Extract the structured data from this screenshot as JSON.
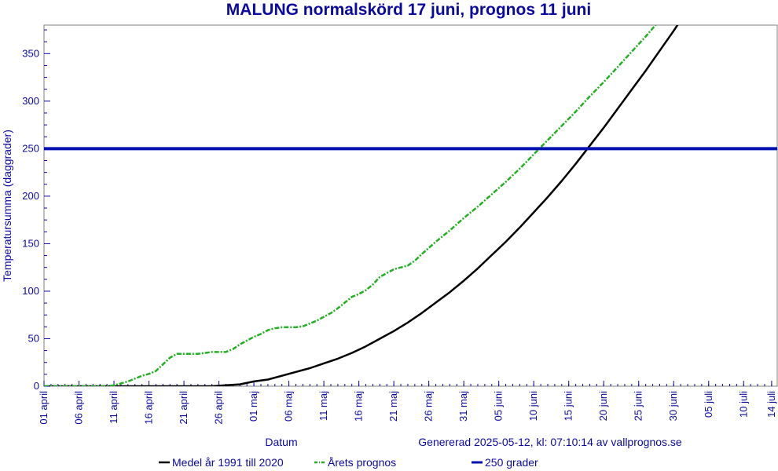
{
  "chart_data": {
    "type": "line",
    "title": "MALUNG normalskörd 17 juni, prognos 11 juni",
    "xlabel": "Datum",
    "ylabel": "Temperatursumma (daggrader)",
    "generated_note": "Genererad 2025-05-12, kl: 07:10:14 av vallprognos.se",
    "x_start_date": "2025-04-01",
    "ylim": [
      0,
      380
    ],
    "y_ticks": [
      0,
      50,
      100,
      150,
      200,
      250,
      300,
      350
    ],
    "x_ticks": [
      {
        "label": "01 april",
        "day": 0
      },
      {
        "label": "06 april",
        "day": 5
      },
      {
        "label": "11 april",
        "day": 10
      },
      {
        "label": "16 april",
        "day": 15
      },
      {
        "label": "21 april",
        "day": 20
      },
      {
        "label": "26 april",
        "day": 25
      },
      {
        "label": "01 maj",
        "day": 30
      },
      {
        "label": "06 maj",
        "day": 35
      },
      {
        "label": "11 maj",
        "day": 40
      },
      {
        "label": "16 maj",
        "day": 45
      },
      {
        "label": "21 maj",
        "day": 50
      },
      {
        "label": "26 maj",
        "day": 55
      },
      {
        "label": "31 maj",
        "day": 60
      },
      {
        "label": "05 juni",
        "day": 65
      },
      {
        "label": "10 juni",
        "day": 70
      },
      {
        "label": "15 juni",
        "day": 75
      },
      {
        "label": "20 juni",
        "day": 80
      },
      {
        "label": "25 juni",
        "day": 85
      },
      {
        "label": "30 juni",
        "day": 90
      },
      {
        "label": "05 juli",
        "day": 95
      },
      {
        "label": "10 juli",
        "day": 100
      },
      {
        "label": "14 juli",
        "day": 104
      }
    ],
    "series": [
      {
        "name": "Medel år 1991 till 2020",
        "color": "#000000",
        "style": "solid",
        "points": [
          [
            0,
            0
          ],
          [
            20,
            0
          ],
          [
            24,
            0
          ],
          [
            26,
            1
          ],
          [
            28,
            2
          ],
          [
            30,
            5
          ],
          [
            32,
            7
          ],
          [
            34,
            11
          ],
          [
            36,
            15
          ],
          [
            38,
            19
          ],
          [
            40,
            24
          ],
          [
            42,
            29
          ],
          [
            44,
            35
          ],
          [
            46,
            42
          ],
          [
            48,
            50
          ],
          [
            50,
            58
          ],
          [
            52,
            67
          ],
          [
            54,
            77
          ],
          [
            56,
            88
          ],
          [
            58,
            99
          ],
          [
            60,
            111
          ],
          [
            62,
            124
          ],
          [
            64,
            138
          ],
          [
            66,
            152
          ],
          [
            68,
            167
          ],
          [
            70,
            183
          ],
          [
            72,
            199
          ],
          [
            74,
            216
          ],
          [
            76,
            234
          ],
          [
            78,
            253
          ],
          [
            80,
            272
          ],
          [
            82,
            292
          ],
          [
            84,
            312
          ],
          [
            86,
            332
          ],
          [
            88,
            353
          ],
          [
            90,
            374
          ],
          [
            92,
            396
          ],
          [
            94,
            418
          ]
        ]
      },
      {
        "name": "Årets prognos",
        "color": "#20b020",
        "style": "dashed",
        "points": [
          [
            0,
            0
          ],
          [
            9,
            0
          ],
          [
            10,
            1
          ],
          [
            11,
            3
          ],
          [
            12,
            5
          ],
          [
            13,
            8
          ],
          [
            14,
            11
          ],
          [
            15,
            13
          ],
          [
            16,
            16
          ],
          [
            17,
            23
          ],
          [
            18,
            30
          ],
          [
            19,
            34
          ],
          [
            20,
            34
          ],
          [
            21,
            34
          ],
          [
            22,
            34
          ],
          [
            23,
            35
          ],
          [
            24,
            36
          ],
          [
            25,
            36
          ],
          [
            26,
            36
          ],
          [
            27,
            39
          ],
          [
            28,
            44
          ],
          [
            29,
            48
          ],
          [
            30,
            52
          ],
          [
            31,
            55
          ],
          [
            32,
            59
          ],
          [
            33,
            61
          ],
          [
            34,
            62
          ],
          [
            35,
            62
          ],
          [
            36,
            62
          ],
          [
            37,
            63
          ],
          [
            38,
            66
          ],
          [
            39,
            69
          ],
          [
            40,
            73
          ],
          [
            41,
            77
          ],
          [
            42,
            82
          ],
          [
            43,
            88
          ],
          [
            44,
            94
          ],
          [
            45,
            97
          ],
          [
            46,
            101
          ],
          [
            47,
            107
          ],
          [
            48,
            115
          ],
          [
            49,
            119
          ],
          [
            50,
            123
          ],
          [
            51,
            125
          ],
          [
            52,
            127
          ],
          [
            53,
            132
          ],
          [
            54,
            139
          ],
          [
            56,
            152
          ],
          [
            58,
            164
          ],
          [
            60,
            177
          ],
          [
            62,
            189
          ],
          [
            64,
            202
          ],
          [
            66,
            215
          ],
          [
            68,
            229
          ],
          [
            70,
            244
          ],
          [
            72,
            259
          ],
          [
            74,
            274
          ],
          [
            76,
            289
          ],
          [
            78,
            305
          ],
          [
            80,
            320
          ],
          [
            82,
            336
          ],
          [
            84,
            352
          ],
          [
            86,
            368
          ],
          [
            88,
            385
          ],
          [
            90,
            402
          ]
        ]
      },
      {
        "name": "250 grader",
        "color": "#0010b0",
        "style": "solid",
        "points": [
          [
            0,
            250
          ],
          [
            105,
            250
          ]
        ]
      }
    ]
  }
}
